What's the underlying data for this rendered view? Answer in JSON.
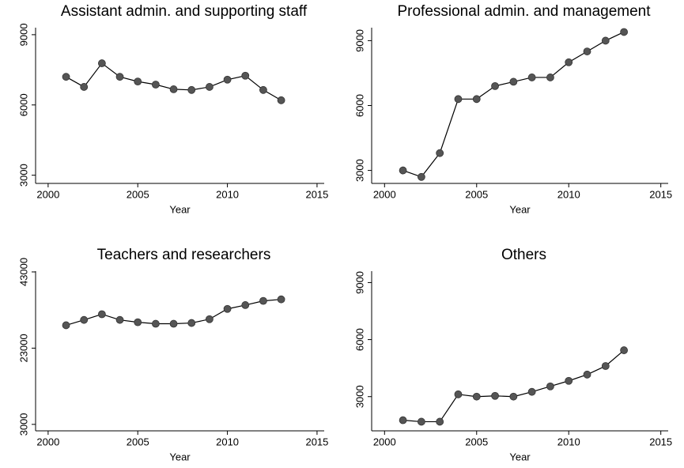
{
  "chart_data": [
    {
      "type": "line",
      "title": "Assistant admin. and supporting staff",
      "xlabel": "Year",
      "x": [
        2001,
        2002,
        2003,
        2004,
        2005,
        2006,
        2007,
        2008,
        2009,
        2010,
        2011,
        2012,
        2013
      ],
      "values": [
        7200,
        6770,
        7780,
        7200,
        7000,
        6870,
        6670,
        6640,
        6770,
        7080,
        7250,
        6640,
        6200
      ],
      "color": "#555555",
      "xlim": [
        1999.3,
        2015.4
      ],
      "xticks": [
        2000,
        2005,
        2010,
        2015
      ],
      "ylim": [
        2650,
        9300
      ],
      "yticks": [
        3000,
        6000,
        9000
      ]
    },
    {
      "type": "line",
      "title": "Professional admin. and management",
      "xlabel": "Year",
      "x": [
        2001,
        2002,
        2003,
        2004,
        2005,
        2006,
        2007,
        2008,
        2009,
        2010,
        2011,
        2012,
        2013
      ],
      "values": [
        3000,
        2700,
        3800,
        6300,
        6300,
        6900,
        7100,
        7300,
        7300,
        8000,
        8500,
        9000,
        9400
      ],
      "color": "#555555",
      "xlim": [
        1999.3,
        2015.4
      ],
      "xticks": [
        2000,
        2005,
        2010,
        2015
      ],
      "ylim": [
        2400,
        9600
      ],
      "yticks": [
        3000,
        6000,
        9000
      ]
    },
    {
      "type": "line",
      "title": "Teachers and researchers",
      "xlabel": "Year",
      "x": [
        2001,
        2002,
        2003,
        2004,
        2005,
        2006,
        2007,
        2008,
        2009,
        2010,
        2011,
        2012,
        2013
      ],
      "values": [
        29000,
        30400,
        31900,
        30400,
        29800,
        29400,
        29400,
        29600,
        30600,
        33300,
        34300,
        35400,
        35800
      ],
      "color": "#555555",
      "xlim": [
        1999.3,
        2015.4
      ],
      "xticks": [
        2000,
        2005,
        2010,
        2015
      ],
      "ylim": [
        1300,
        43200
      ],
      "yticks": [
        3000,
        23000,
        43000
      ]
    },
    {
      "type": "line",
      "title": "Others",
      "xlabel": "Year",
      "x": [
        2001,
        2002,
        2003,
        2004,
        2005,
        2006,
        2007,
        2008,
        2009,
        2010,
        2011,
        2012,
        2013
      ],
      "values": [
        1760,
        1680,
        1680,
        3120,
        3000,
        3040,
        3000,
        3250,
        3540,
        3830,
        4160,
        4610,
        5440
      ],
      "color": "#555555",
      "xlim": [
        1999.3,
        2015.4
      ],
      "xticks": [
        2000,
        2005,
        2010,
        2015
      ],
      "ylim": [
        1200,
        9600
      ],
      "yticks": [
        3000,
        6000,
        9000
      ]
    }
  ]
}
